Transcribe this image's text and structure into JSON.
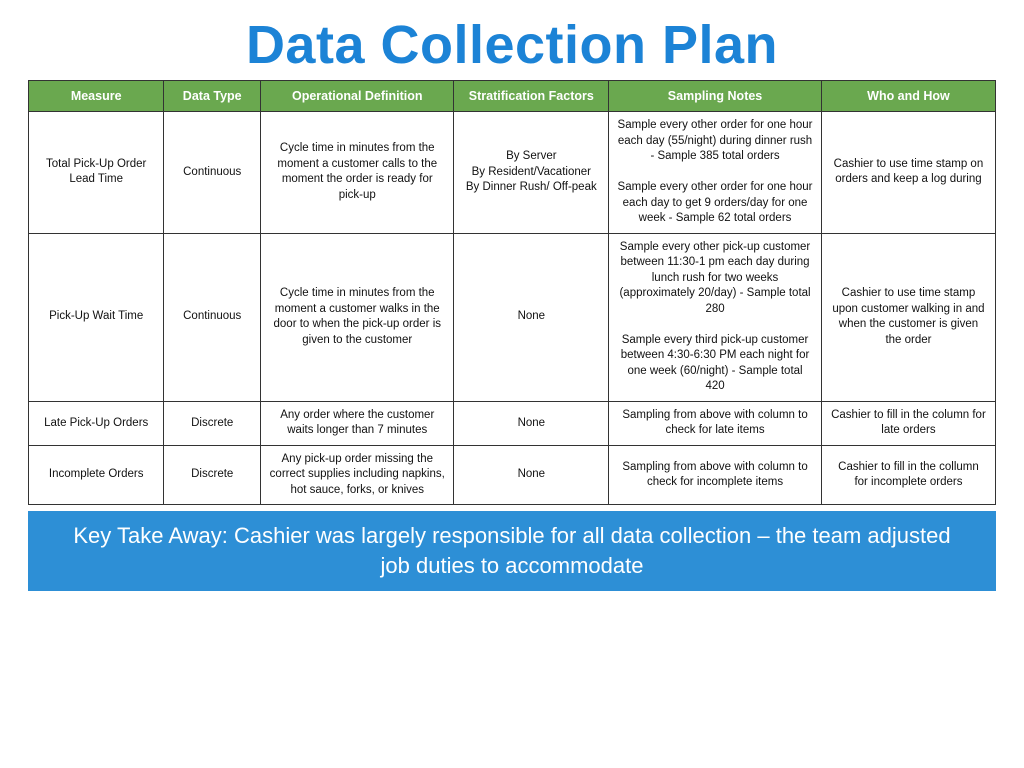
{
  "title": "Data Collection Plan",
  "table": {
    "header_bg": "#6aa84f",
    "header_fg": "#ffffff",
    "border_color": "#333333",
    "cell_fontsize": 11.5,
    "header_fontsize": 12.5,
    "columns": [
      "Measure",
      "Data Type",
      "Operational Definition",
      "Stratification Factors",
      "Sampling Notes",
      "Who and How"
    ],
    "column_widths_pct": [
      14,
      10,
      20,
      16,
      22,
      18
    ],
    "rows": [
      {
        "measure": "Total Pick-Up Order Lead Time",
        "data_type": "Continuous",
        "op_def": "Cycle time in minutes from the moment a customer calls to the moment the order is ready for pick-up",
        "strat": "By Server\nBy Resident/Vacationer\nBy Dinner Rush/ Off-peak",
        "sampling": "Sample every other order for one hour each day (55/night) during dinner rush - Sample 385 total orders\n\nSample every other order for one hour each day to get 9 orders/day for one week - Sample 62 total orders",
        "who": "Cashier to use time stamp on orders and keep a log during"
      },
      {
        "measure": "Pick-Up Wait Time",
        "data_type": "Continuous",
        "op_def": "Cycle time in minutes from the moment a customer walks in the door to when the pick-up order is given to the customer",
        "strat": "None",
        "sampling": "Sample every other pick-up customer between 11:30-1 pm each day during lunch rush for two weeks (approximately 20/day) - Sample total 280\n\nSample every third pick-up customer between 4:30-6:30 PM each night for one week (60/night) - Sample total 420",
        "who": "Cashier to use time stamp upon customer walking in and when the customer is given the order"
      },
      {
        "measure": "Late Pick-Up Orders",
        "data_type": "Discrete",
        "op_def": "Any order where the customer waits longer than 7 minutes",
        "strat": "None",
        "sampling": "Sampling from above with column to check for late items",
        "who": "Cashier to fill in the column for late orders"
      },
      {
        "measure": "Incomplete Orders",
        "data_type": "Discrete",
        "op_def": "Any pick-up order missing the correct supplies including napkins, hot sauce, forks, or knives",
        "strat": "None",
        "sampling": "Sampling from above with column to check for incomplete items",
        "who": "Cashier to fill in the collumn for incomplete orders"
      }
    ]
  },
  "callout": {
    "text": "Key Take Away: Cashier was largely responsible for all data collection – the team adjusted job duties to accommodate",
    "bg": "#2d8fd6",
    "fg": "#ffffff",
    "fontsize": 22
  },
  "title_style": {
    "color": "#1c83d6",
    "fontsize": 54,
    "weight": 700
  }
}
